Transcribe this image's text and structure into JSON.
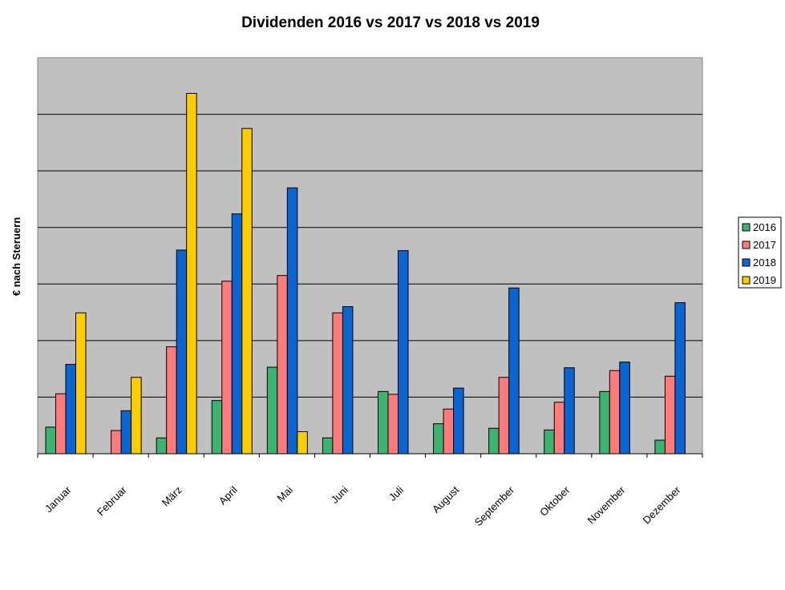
{
  "chart_data": {
    "type": "bar",
    "title": "Dividenden 2016 vs 2017 vs 2018 vs 2019",
    "xlabel": "",
    "ylabel": "€ nach Steruern",
    "ylim": [
      0,
      7
    ],
    "grid": true,
    "legend": "right",
    "categories": [
      "Januar",
      "Februar",
      "März",
      "April",
      "Mai",
      "Juni",
      "Juli",
      "August",
      "September",
      "Oktober",
      "November",
      "Dezember"
    ],
    "series": [
      {
        "name": "2016",
        "color": "#3cb371",
        "values": [
          0.47,
          0,
          0.28,
          0.94,
          1.53,
          0.28,
          1.1,
          0.53,
          0.45,
          0.42,
          1.1,
          0.24
        ]
      },
      {
        "name": "2017",
        "color": "#ff7b7b",
        "values": [
          1.06,
          0.41,
          1.89,
          3.05,
          3.15,
          2.49,
          1.05,
          0.79,
          1.35,
          0.91,
          1.47,
          1.37
        ]
      },
      {
        "name": "2018",
        "color": "#0a64d2",
        "values": [
          1.58,
          0.76,
          3.6,
          4.24,
          4.7,
          2.6,
          3.59,
          1.16,
          2.93,
          1.52,
          1.62,
          2.67
        ]
      },
      {
        "name": "2019",
        "color": "#ffcc00",
        "values": [
          2.49,
          1.35,
          6.37,
          5.75,
          0.39,
          null,
          null,
          null,
          null,
          null,
          null,
          null
        ]
      }
    ]
  }
}
